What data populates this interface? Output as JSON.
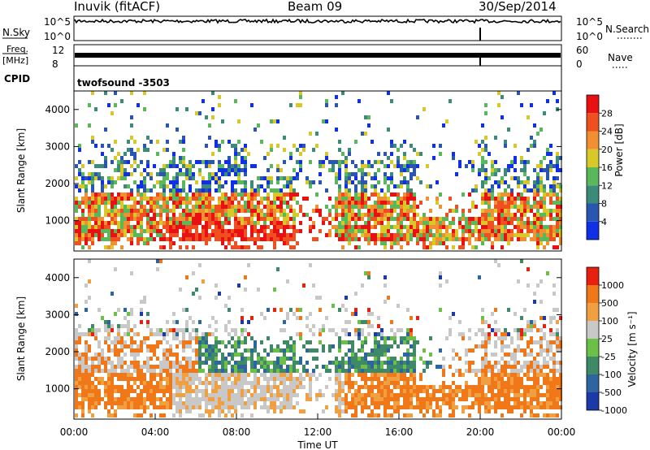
{
  "header": {
    "station": "Inuvik (fitACF)",
    "beam": "Beam 09",
    "date": "30/Sep/2014"
  },
  "chart_data": [
    {
      "type": "line",
      "name_label": "N.Sky",
      "right_label": "N.Search",
      "left_ticks": [
        "10^5",
        "10^0"
      ],
      "right_ticks": [
        "10^5",
        "10^0"
      ],
      "series": [
        {
          "name": "N.Sky",
          "style": "solid"
        },
        {
          "name": "N.Search",
          "style": "dotted"
        }
      ],
      "level": 0.8
    },
    {
      "type": "line",
      "name_label_top": "Freq.",
      "name_label_bottom": "[MHz]",
      "right_label": "Nave",
      "left_ticks": [
        "12",
        "8"
      ],
      "right_ticks": [
        "60",
        "0"
      ],
      "level": 0.5
    },
    {
      "type": "table",
      "label": "CPID",
      "value": "twofsound -3503"
    },
    {
      "type": "heatmap",
      "ylabel": "Slant Range [km]",
      "yticks": [
        1000,
        2000,
        3000,
        4000
      ],
      "ylim": [
        180,
        4500
      ],
      "colorbar_label": "Power [dB]",
      "colorbar_ticks": [
        "4",
        "8",
        "12",
        "16",
        "20",
        "24",
        "28"
      ],
      "colors": [
        "#1030e8",
        "#2a55b0",
        "#3b8a7a",
        "#58b85a",
        "#d8c828",
        "#f09030",
        "#f05020",
        "#e81010"
      ]
    },
    {
      "type": "heatmap",
      "ylabel": "Slant Range [km]",
      "xlabel": "Time UT",
      "yticks": [
        1000,
        2000,
        3000,
        4000
      ],
      "xticks": [
        "00:00",
        "04:00",
        "08:00",
        "12:00",
        "16:00",
        "20:00",
        "00:00"
      ],
      "ylim": [
        180,
        4500
      ],
      "colorbar_label": "Velocity [m s⁻¹]",
      "colorbar_ticks": [
        "1000",
        "500",
        "100",
        "25",
        "-25",
        "-100",
        "-500",
        "-1000"
      ],
      "colors": [
        "#1a3aa8",
        "#2e64a0",
        "#3e8a66",
        "#6cc048",
        "#c8c8c8",
        "#f0a040",
        "#f07818",
        "#e82010"
      ]
    }
  ]
}
